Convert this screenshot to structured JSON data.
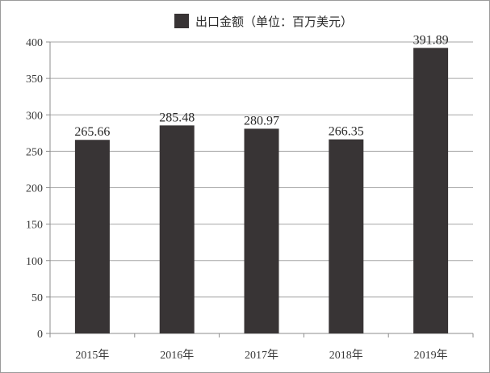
{
  "chart_data": {
    "type": "bar",
    "title": "",
    "xlabel": "",
    "ylabel": "",
    "categories": [
      "2015年",
      "2016年",
      "2017年",
      "2018年",
      "2019年"
    ],
    "series": [
      {
        "name": "出口金额（单位：百万美元）",
        "values": [
          265.66,
          285.48,
          280.97,
          266.35,
          391.89
        ]
      }
    ],
    "data_labels": [
      "265.66",
      "285.48",
      "280.97",
      "266.35",
      "391.89"
    ],
    "ylim": [
      0,
      400
    ],
    "yticks": [
      0,
      50,
      100,
      150,
      200,
      250,
      300,
      350,
      400
    ],
    "grid": true,
    "legend_position": "top",
    "colors": {
      "bar": "#383435",
      "grid": "#a6a6a6",
      "axis": "#8c8c8c"
    }
  }
}
